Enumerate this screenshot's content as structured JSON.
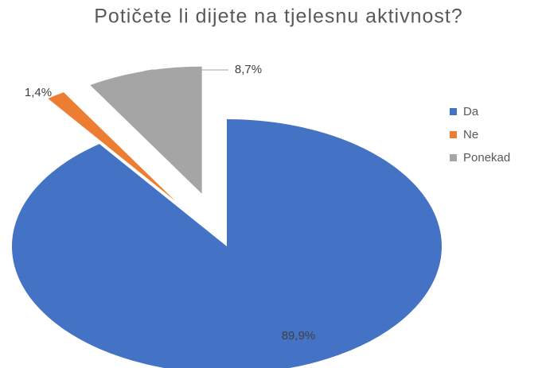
{
  "chart_data": {
    "type": "pie",
    "title": "Potičete li dijete na tjelesnu aktivnost?",
    "categories": [
      "Da",
      "Ne",
      "Ponekad"
    ],
    "values": [
      89.9,
      1.4,
      8.7
    ],
    "value_labels": [
      "89,9%",
      "1,4%",
      "8,7%"
    ],
    "colors": [
      "#4472c4",
      "#ed7d31",
      "#a5a5a5"
    ],
    "legend": "right"
  }
}
